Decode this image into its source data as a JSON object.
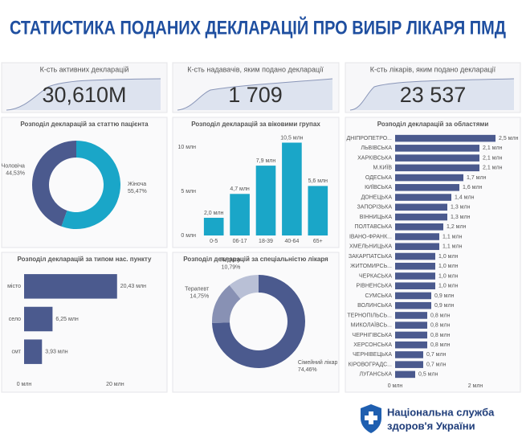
{
  "title": "СТАТИСТИКА ПОДАНИХ ДЕКЛАРАЦІЙ ПРО ВИБІР ЛІКАРЯ ПМД",
  "kpis": [
    {
      "label": "К-сть активних декларацій",
      "value": "30,610M"
    },
    {
      "label": "К-сть надавачів, яким подано декларації",
      "value": "1 709"
    },
    {
      "label": "К-сть лікарів, яким подано декларації",
      "value": "23 537"
    }
  ],
  "chart_data": [
    {
      "type": "pie",
      "title": "Розподіл декларацій за статтю пацієнта",
      "categories": [
        "Чоловіча",
        "Жіноча"
      ],
      "values": [
        44.53,
        55.47
      ],
      "value_labels": [
        "44,53%",
        "55,47%"
      ],
      "colors": [
        "#4b5a8e",
        "#1aa6c8"
      ]
    },
    {
      "type": "bar",
      "title": "Розподіл декларацій за віковими групах",
      "categories": [
        "0-5",
        "06-17",
        "18-39",
        "40-64",
        "65+"
      ],
      "values": [
        2.0,
        4.7,
        7.9,
        10.5,
        5.6
      ],
      "value_labels": [
        "2,0 млн",
        "4,7 млн",
        "7,9 млн",
        "10,5 млн",
        "5,6 млн"
      ],
      "color": "#1aa6c8",
      "ylim": [
        0,
        11
      ],
      "yticks": [
        {
          "value": 0,
          "label": "0 млн"
        },
        {
          "value": 5,
          "label": "5 млн"
        },
        {
          "value": 10,
          "label": "10 млн"
        }
      ]
    },
    {
      "type": "hbar",
      "title": "Розподіл декларацій за типом нас. пункту",
      "categories": [
        "місто",
        "село",
        "смт"
      ],
      "values": [
        20.43,
        6.25,
        3.93
      ],
      "value_labels": [
        "20,43 млн",
        "6,25 млн",
        "3,93 млн"
      ],
      "color": "#4b5a8e",
      "xlim": [
        0,
        30
      ],
      "xticks": [
        {
          "value": 0,
          "label": "0 млн"
        },
        {
          "value": 20,
          "label": "20 млн"
        }
      ]
    },
    {
      "type": "pie",
      "title": "Розподіл декларацій за спеціальністю лікаря",
      "categories": [
        "Педіатр",
        "Терапевт",
        "Сімейний лікар"
      ],
      "values": [
        10.79,
        14.75,
        74.46
      ],
      "value_labels": [
        "10,79%",
        "14,75%",
        "74,46%"
      ],
      "colors": [
        "#b9c0d6",
        "#8891b4",
        "#4b5a8e"
      ]
    },
    {
      "type": "hbar",
      "title": "Розподіл декларацій за областями",
      "categories": [
        "ДНІПРОПЕТРО...",
        "ЛЬВІВСЬКА",
        "ХАРКІВСЬКА",
        "М.КИЇВ",
        "ОДЕСЬКА",
        "КИЇВСЬКА",
        "ДОНЕЦЬКА",
        "ЗАПОРІЗЬКА",
        "ВІННИЦЬКА",
        "ПОЛТАВСЬКА",
        "ІВАНО-ФРАНК...",
        "ХМЕЛЬНИЦЬКА",
        "ЗАКАРПАТСЬКА",
        "ЖИТОМИРСЬ...",
        "ЧЕРКАСЬКА",
        "РІВНЕНСЬКА",
        "СУМСЬКА",
        "ВОЛИНСЬКА",
        "ТЕРНОПІЛЬСЬ...",
        "МИКОЛАЇВСЬ...",
        "ЧЕРНІГІВСЬКА",
        "ХЕРСОНСЬКА",
        "ЧЕРНІВЕЦЬКА",
        "КІРОВОГРАДС...",
        "ЛУГАНСЬКА"
      ],
      "values": [
        2.5,
        2.1,
        2.1,
        2.1,
        1.7,
        1.6,
        1.4,
        1.3,
        1.3,
        1.2,
        1.1,
        1.1,
        1.0,
        1.0,
        1.0,
        1.0,
        0.9,
        0.9,
        0.8,
        0.8,
        0.8,
        0.8,
        0.7,
        0.7,
        0.5
      ],
      "value_labels": [
        "2,5 млн",
        "2,1 млн",
        "2,1 млн",
        "2,1 млн",
        "1,7 млн",
        "1,6 млн",
        "1,4 млн",
        "1,3 млн",
        "1,3 млн",
        "1,2 млн",
        "1,1 млн",
        "1,1 млн",
        "1,0 млн",
        "1,0 млн",
        "1,0 млн",
        "1,0 млн",
        "0,9 млн",
        "0,9 млн",
        "0,8 млн",
        "0,8 млн",
        "0,8 млн",
        "0,8 млн",
        "0,7 млн",
        "0,7 млн",
        "0,5 млн"
      ],
      "color": "#4b5a8e",
      "xlim": [
        0,
        3
      ],
      "xticks": [
        {
          "value": 0,
          "label": "0 млн"
        },
        {
          "value": 2,
          "label": "2 млн"
        }
      ]
    }
  ],
  "footer": {
    "line1": "Національна служба",
    "line2": "здоров'я України"
  }
}
